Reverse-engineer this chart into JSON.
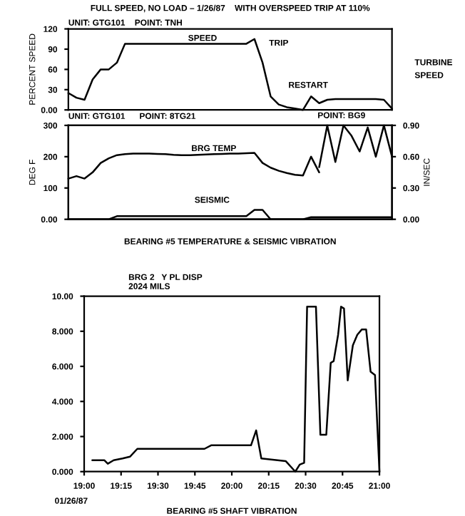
{
  "chart_data": [
    {
      "type": "line",
      "title": "FULL SPEED, NO LOAD – 1/26/87    WITH OVERSPEED TRIP AT 110%",
      "subtitle": "UNIT: GTG101    POINT: TNH",
      "ylabel": "PERCENT SPEED",
      "annotations": [
        "TRIP",
        "RESTART",
        "TURBINE SPEED"
      ],
      "categories": [
        null,
        null,
        null,
        null,
        null,
        null,
        null,
        null,
        null,
        null,
        null,
        null,
        null,
        null,
        null,
        null,
        null,
        null,
        null,
        null,
        null,
        null,
        null,
        null,
        null,
        null,
        null,
        null,
        null,
        null,
        null,
        null,
        null,
        null,
        null,
        null,
        null,
        null,
        null,
        null,
        null
      ],
      "series": [
        {
          "name": "SPEED",
          "color": "#000000",
          "values": [
            25,
            18,
            15,
            45,
            60,
            60,
            70,
            98,
            98,
            98,
            98,
            98,
            98,
            98,
            98,
            98,
            98,
            98,
            98,
            98,
            98,
            98,
            98,
            105,
            70,
            20,
            8,
            4,
            2,
            0,
            20,
            10,
            15,
            16,
            16,
            16,
            16,
            16,
            16,
            15,
            2
          ]
        }
      ],
      "ylim": [
        0,
        120
      ],
      "yticks": [
        {
          "value": 0,
          "label": "0.00"
        },
        30,
        60,
        90,
        120
      ],
      "grid": false,
      "legend": false,
      "tick_labels": "y"
    },
    {
      "type": "line",
      "title": "BEARING #5 TEMPERATURE & SEISMIC VIBRATION",
      "subtitle": "UNIT: GTG101      POINT: 8TG21",
      "ylabel": "DEG F",
      "y2label": "IN/SEC",
      "annotations": [
        "POINT: BG9"
      ],
      "categories": [
        null,
        null,
        null,
        null,
        null,
        null,
        null,
        null,
        null,
        null,
        null,
        null,
        null,
        null,
        null,
        null,
        null,
        null,
        null,
        null,
        null,
        null,
        null,
        null,
        null,
        null,
        null,
        null,
        null,
        null,
        null,
        null,
        null,
        null,
        null,
        null,
        null,
        null,
        null,
        null,
        null
      ],
      "series": [
        {
          "name": "BRG TEMP",
          "color": "#000000",
          "values": [
            130,
            138,
            130,
            150,
            180,
            195,
            205,
            208,
            210,
            210,
            210,
            209,
            208,
            206,
            205,
            205,
            206,
            207,
            208,
            209,
            210,
            210,
            211,
            212,
            180,
            165,
            155,
            148,
            142,
            140,
            200,
            150,
            null,
            null,
            null,
            null,
            null,
            null,
            null,
            null,
            null
          ]
        },
        {
          "color": "#000000",
          "axis": "y2",
          "values": [
            null,
            null,
            null,
            null,
            null,
            null,
            null,
            null,
            null,
            null,
            null,
            null,
            null,
            null,
            null,
            null,
            null,
            null,
            null,
            null,
            null,
            null,
            null,
            null,
            null,
            null,
            null,
            null,
            null,
            null,
            null,
            0.5,
            0.9,
            0.55,
            0.9,
            0.8,
            0.65,
            0.88,
            0.6,
            0.9,
            0.6
          ]
        },
        {
          "name": "SEISMIC",
          "color": "#000000",
          "axis": "y2",
          "values": [
            0,
            0,
            0,
            0,
            0,
            0,
            0.03,
            0.03,
            0.03,
            0.03,
            0.03,
            0.03,
            0.03,
            0.03,
            0.03,
            0.03,
            0.03,
            0.03,
            0.03,
            0.03,
            0.03,
            0.03,
            0.03,
            0.09,
            0.09,
            0,
            0,
            0,
            0,
            0,
            0.02,
            0.02,
            0.02,
            0.02,
            0.02,
            0.02,
            0.02,
            0.02,
            0.02,
            0.02,
            0.02
          ]
        }
      ],
      "ylim": [
        0,
        300
      ],
      "yticks": [
        {
          "value": 0,
          "label": "0.00"
        },
        100,
        200,
        300
      ],
      "y2lim": [
        0,
        0.9
      ],
      "y2ticks": [
        {
          "value": 0,
          "label": "0.00"
        },
        {
          "value": 0.3,
          "label": "0.30"
        },
        {
          "value": 0.6,
          "label": "0.60"
        },
        {
          "value": 0.9,
          "label": "0.90"
        }
      ],
      "grid": false,
      "legend": false,
      "tick_labels": "y"
    },
    {
      "type": "line",
      "title": "BEARING #5 SHAFT VIBRATION",
      "subtitle": "BRG 2   Y PL DISP\n2024 MILS",
      "annotations": [
        "01/26/87"
      ],
      "series": [
        {
          "color": "#000000",
          "x": [
            19.055,
            19.136,
            19.16,
            19.2,
            19.26,
            19.31,
            19.36,
            19.815,
            19.86,
            20.13,
            20.165,
            20.2,
            20.365,
            20.43,
            20.46,
            20.49,
            20.51,
            20.57,
            20.6,
            20.64,
            20.67,
            20.69,
            20.72,
            20.74,
            20.76,
            20.785,
            20.82,
            20.85,
            20.88,
            20.91,
            20.94,
            20.97,
            21.0
          ],
          "values": [
            0.65,
            0.65,
            0.45,
            0.65,
            0.75,
            0.85,
            1.3,
            1.3,
            1.5,
            1.5,
            2.35,
            0.75,
            0.6,
            0.0,
            0.4,
            0.5,
            9.4,
            9.4,
            2.1,
            2.1,
            6.2,
            6.3,
            7.8,
            9.4,
            9.3,
            5.2,
            7.2,
            7.8,
            8.1,
            8.1,
            5.7,
            5.5,
            0.0
          ]
        }
      ],
      "xlim": [
        19,
        21
      ],
      "xticks": [
        {
          "value": 19,
          "label": "19:00"
        },
        {
          "value": 19.25,
          "label": "19:15"
        },
        {
          "value": 19.5,
          "label": "19:30"
        },
        {
          "value": 19.75,
          "label": "19:45"
        },
        {
          "value": 20,
          "label": "20:00"
        },
        {
          "value": 20.25,
          "label": "20:15"
        },
        {
          "value": 20.5,
          "label": "20:30"
        },
        {
          "value": 20.75,
          "label": "20:45"
        },
        {
          "value": 21,
          "label": "21:00"
        }
      ],
      "ylim": [
        0,
        10
      ],
      "yticks": [
        {
          "value": 0,
          "label": "0.000"
        },
        {
          "value": 2,
          "label": "2.000"
        },
        {
          "value": 4,
          "label": "4.000"
        },
        {
          "value": 6,
          "label": "6.000"
        },
        {
          "value": 8,
          "label": "8.000"
        },
        {
          "value": 10,
          "label": "10.00"
        }
      ],
      "grid": false,
      "legend": false
    }
  ]
}
